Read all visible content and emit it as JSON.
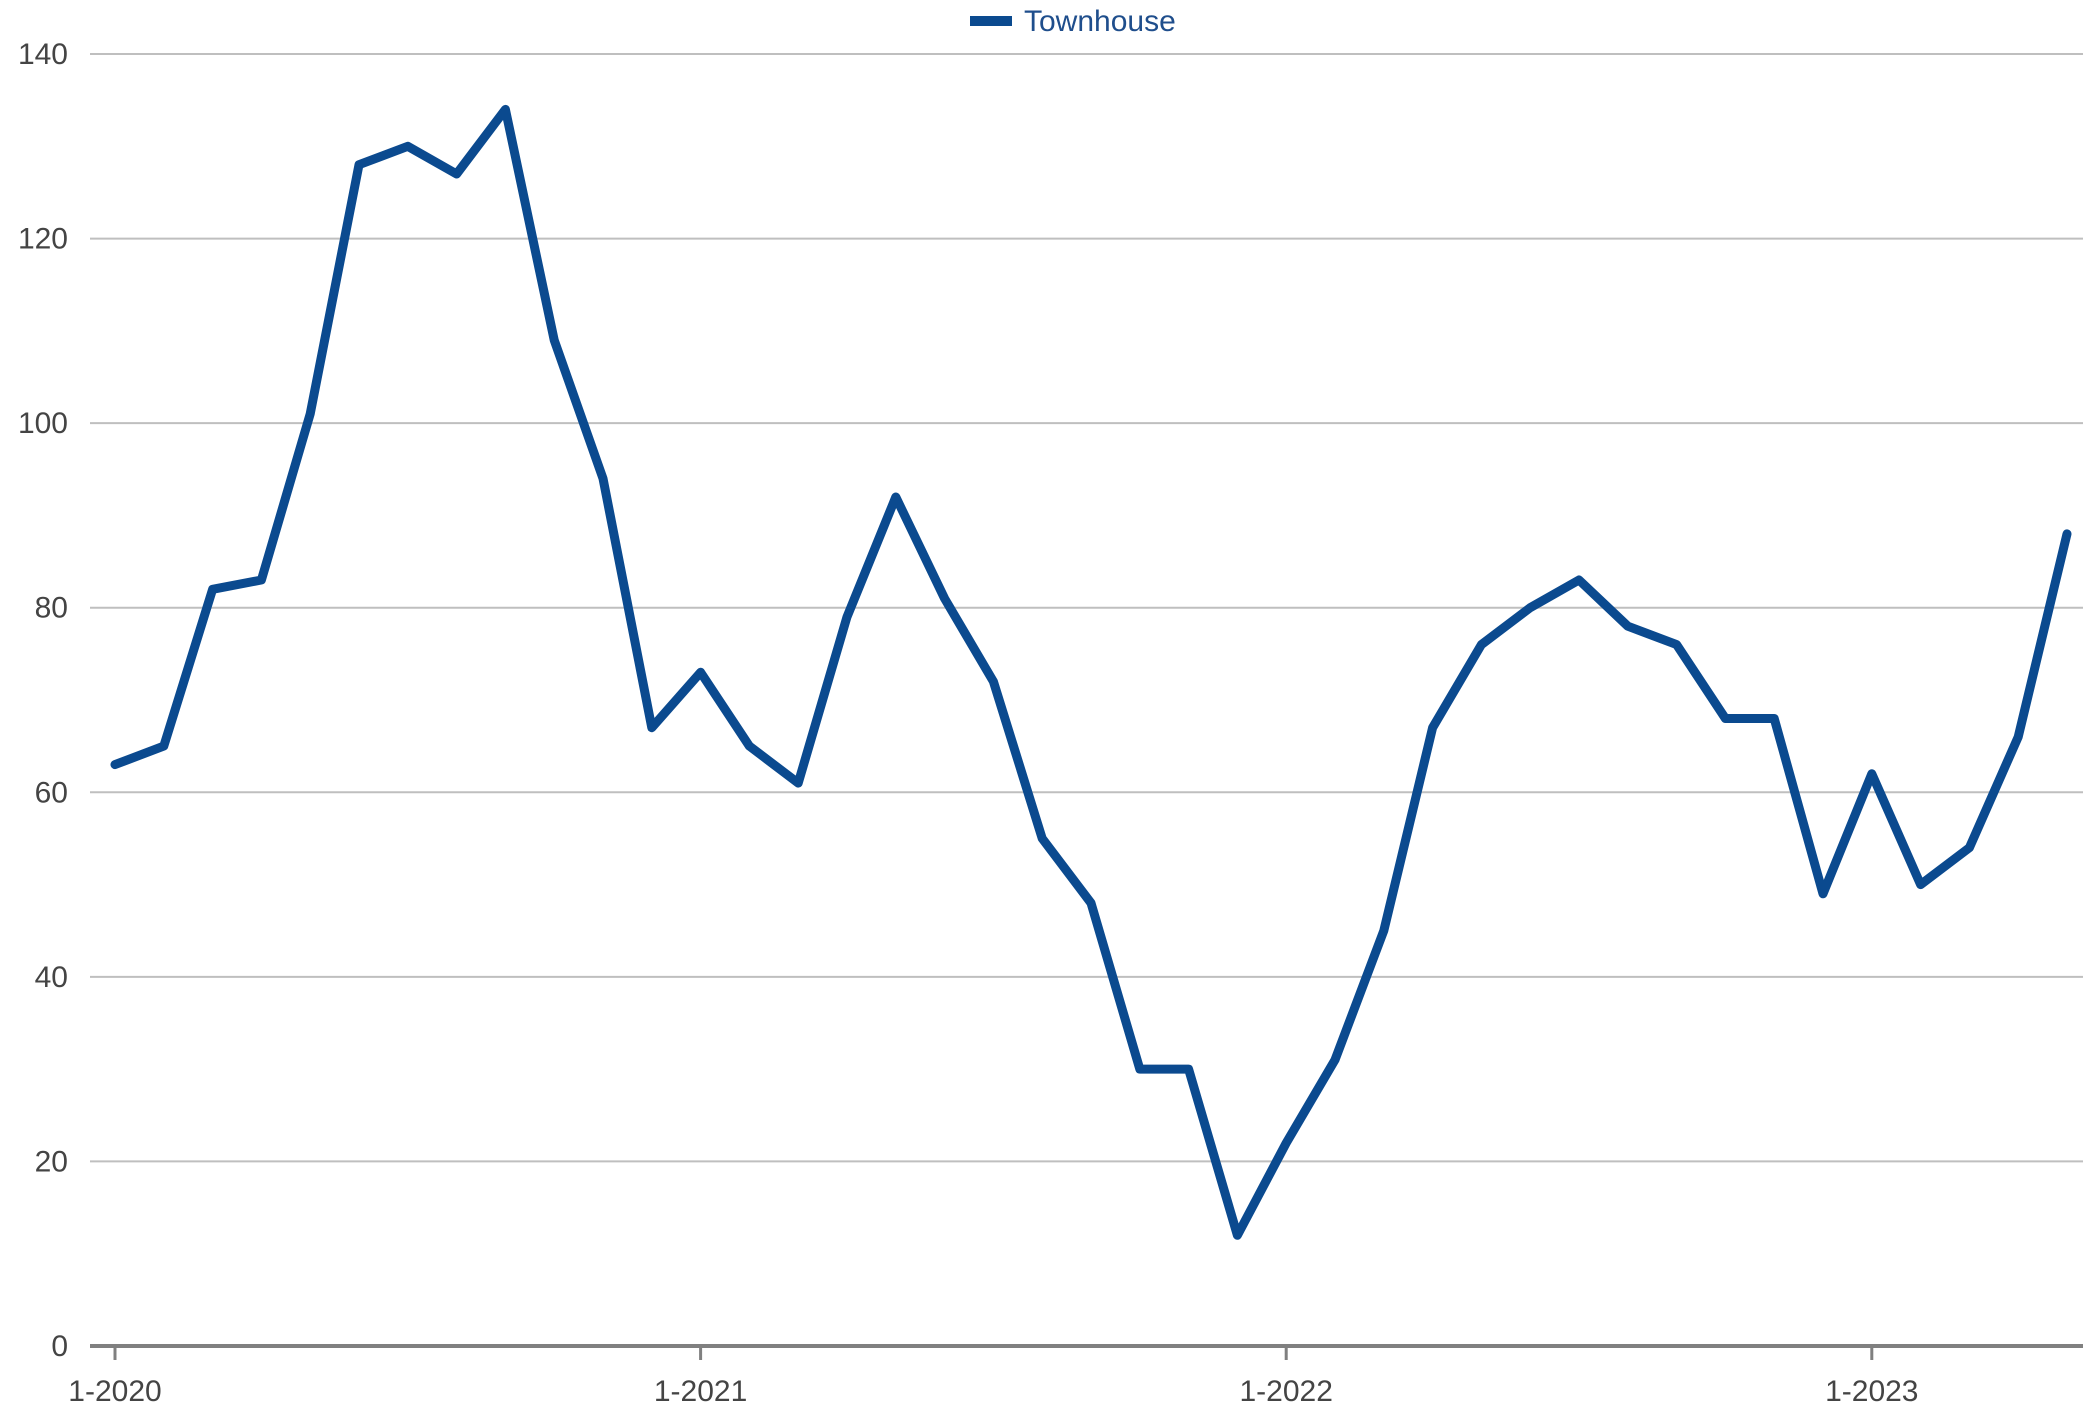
{
  "chart_data": {
    "type": "line",
    "title": "",
    "xlabel": "",
    "ylabel": "",
    "ylim": [
      0,
      140
    ],
    "y_ticks": [
      0,
      20,
      40,
      60,
      80,
      100,
      120,
      140
    ],
    "x_tick_labels": [
      "1-2020",
      "1-2021",
      "1-2022",
      "1-2023"
    ],
    "x_tick_dates": [
      "2020-01",
      "2021-01",
      "2022-01",
      "2023-01"
    ],
    "xlim": [
      "2020-01",
      "2023-05"
    ],
    "grid": "horizontal",
    "legend_position": "top-center",
    "colors": {
      "series": "#0b4a8f",
      "grid": "#bfbfbf",
      "axis": "#808080"
    },
    "x": [
      "2020-01",
      "2020-02",
      "2020-03",
      "2020-04",
      "2020-05",
      "2020-06",
      "2020-07",
      "2020-08",
      "2020-09",
      "2020-10",
      "2020-11",
      "2020-12",
      "2021-01",
      "2021-02",
      "2021-03",
      "2021-04",
      "2021-05",
      "2021-06",
      "2021-07",
      "2021-08",
      "2021-09",
      "2021-10",
      "2021-11",
      "2021-12",
      "2022-01",
      "2022-02",
      "2022-03",
      "2022-04",
      "2022-05",
      "2022-06",
      "2022-07",
      "2022-08",
      "2022-09",
      "2022-10",
      "2022-11",
      "2022-12",
      "2023-01",
      "2023-02",
      "2023-03",
      "2023-04",
      "2023-05"
    ],
    "series": [
      {
        "name": "Townhouse",
        "values": [
          63,
          65,
          82,
          83,
          101,
          128,
          130,
          127,
          134,
          109,
          94,
          67,
          73,
          65,
          61,
          79,
          92,
          81,
          72,
          55,
          48,
          30,
          30,
          12,
          22,
          31,
          45,
          67,
          76,
          80,
          83,
          78,
          76,
          68,
          68,
          49,
          62,
          50,
          54,
          66,
          88
        ]
      }
    ]
  }
}
